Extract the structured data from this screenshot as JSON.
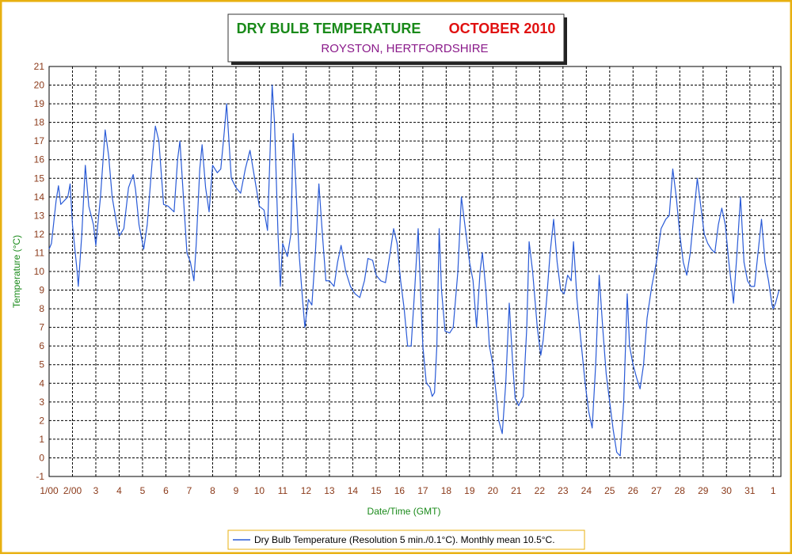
{
  "chart_data": {
    "type": "line",
    "title": "DRY BULB TEMPERATURE",
    "title_period": "OCTOBER 2010",
    "subtitle": "ROYSTON, HERTFORDSHIRE",
    "x_label": "Date/Time (GMT)",
    "y_label": "Temperature (°C)",
    "xlim": [
      0,
      31.33
    ],
    "ylim": [
      -1,
      21
    ],
    "yticks": [
      -1,
      0,
      1,
      2,
      3,
      4,
      5,
      6,
      7,
      8,
      9,
      10,
      11,
      12,
      13,
      14,
      15,
      16,
      17,
      18,
      19,
      20,
      21
    ],
    "xticks": [
      {
        "value": 0,
        "label": "1/00"
      },
      {
        "value": 1,
        "label": "2/00"
      },
      {
        "value": 2,
        "label": "3"
      },
      {
        "value": 3,
        "label": "4"
      },
      {
        "value": 4,
        "label": "5"
      },
      {
        "value": 5,
        "label": "6"
      },
      {
        "value": 6,
        "label": "7"
      },
      {
        "value": 7,
        "label": "8"
      },
      {
        "value": 8,
        "label": "9"
      },
      {
        "value": 9,
        "label": "10"
      },
      {
        "value": 10,
        "label": "11"
      },
      {
        "value": 11,
        "label": "12"
      },
      {
        "value": 12,
        "label": "13"
      },
      {
        "value": 13,
        "label": "14"
      },
      {
        "value": 14,
        "label": "15"
      },
      {
        "value": 15,
        "label": "16"
      },
      {
        "value": 16,
        "label": "17"
      },
      {
        "value": 17,
        "label": "18"
      },
      {
        "value": 18,
        "label": "19"
      },
      {
        "value": 19,
        "label": "20"
      },
      {
        "value": 20,
        "label": "21"
      },
      {
        "value": 21,
        "label": "22"
      },
      {
        "value": 22,
        "label": "23"
      },
      {
        "value": 23,
        "label": "24"
      },
      {
        "value": 24,
        "label": "25"
      },
      {
        "value": 25,
        "label": "26"
      },
      {
        "value": 26,
        "label": "27"
      },
      {
        "value": 27,
        "label": "28"
      },
      {
        "value": 28,
        "label": "29"
      },
      {
        "value": 29,
        "label": "30"
      },
      {
        "value": 30,
        "label": "31"
      },
      {
        "value": 31,
        "label": "1"
      }
    ],
    "grid": true,
    "x": [
      0,
      0.1,
      0.3,
      0.4,
      0.5,
      0.8,
      0.9,
      1.0,
      1.2,
      1.25,
      1.4,
      1.55,
      1.7,
      1.9,
      2.0,
      2.2,
      2.4,
      2.55,
      2.7,
      2.9,
      3.0,
      3.2,
      3.4,
      3.6,
      3.7,
      3.85,
      4.05,
      4.2,
      4.45,
      4.55,
      4.7,
      4.9,
      5.1,
      5.35,
      5.5,
      5.6,
      5.75,
      5.9,
      6.05,
      6.2,
      6.3,
      6.45,
      6.55,
      6.7,
      6.85,
      7.0,
      7.2,
      7.35,
      7.5,
      7.6,
      7.7,
      7.8,
      8.0,
      8.2,
      8.4,
      8.6,
      8.8,
      9.0,
      9.2,
      9.35,
      9.45,
      9.55,
      9.65,
      9.8,
      9.9,
      10.0,
      10.2,
      10.35,
      10.45,
      10.55,
      10.7,
      10.85,
      10.95,
      11.1,
      11.25,
      11.4,
      11.55,
      11.7,
      11.85,
      12.0,
      12.2,
      12.35,
      12.5,
      12.7,
      12.9,
      13.1,
      13.3,
      13.5,
      13.65,
      13.85,
      14.0,
      14.2,
      14.4,
      14.6,
      14.75,
      14.9,
      15.05,
      15.2,
      15.35,
      15.5,
      15.65,
      15.8,
      15.9,
      16.0,
      16.15,
      16.3,
      16.4,
      16.5,
      16.6,
      16.7,
      16.8,
      16.95,
      17.15,
      17.3,
      17.5,
      17.65,
      17.8,
      18.0,
      18.15,
      18.3,
      18.45,
      18.55,
      18.7,
      18.85,
      19.0,
      19.15,
      19.25,
      19.4,
      19.55,
      19.7,
      19.85,
      19.95,
      20.1,
      20.3,
      20.45,
      20.55,
      20.7,
      20.9,
      21.05,
      21.15,
      21.3,
      21.45,
      21.6,
      21.75,
      21.9,
      22.05,
      22.2,
      22.35,
      22.45,
      22.6,
      22.75,
      22.95,
      23.1,
      23.25,
      23.4,
      23.55,
      23.7,
      23.85,
      24.0,
      24.15,
      24.3,
      24.45,
      24.6,
      24.75,
      24.85,
      25.0,
      25.15,
      25.3,
      25.45,
      25.6,
      25.8,
      26.0,
      26.2,
      26.4,
      26.55,
      26.7,
      26.85,
      27.0,
      27.15,
      27.3,
      27.45,
      27.6,
      27.75,
      27.9,
      28.05,
      28.2,
      28.35,
      28.5,
      28.65,
      28.8,
      28.95,
      29.1,
      29.3,
      29.45,
      29.6,
      29.75,
      29.9,
      30.05,
      30.2,
      30.35,
      30.5,
      30.65,
      30.8,
      30.95,
      31.0,
      31.1,
      31.25
    ],
    "series": [
      {
        "name": "Dry Bulb Temperature (Resolution 5 min./0.1°C). Monthly mean 10.5°C.",
        "color": "#2a5bd7",
        "values": [
          11.2,
          11.5,
          13.8,
          14.6,
          13.6,
          14.0,
          14.7,
          12.5,
          10.0,
          9.2,
          12.0,
          15.7,
          13.5,
          12.5,
          11.4,
          14.0,
          17.6,
          16.2,
          14.0,
          12.5,
          11.9,
          12.3,
          14.5,
          15.2,
          14.4,
          12.5,
          11.2,
          12.5,
          16.5,
          17.8,
          17.0,
          13.6,
          13.5,
          13.2,
          16.0,
          17.0,
          14.0,
          11.0,
          10.5,
          9.5,
          11.5,
          15.5,
          16.8,
          14.5,
          13.2,
          15.7,
          15.3,
          15.5,
          17.5,
          19.0,
          17.0,
          15.0,
          14.5,
          14.2,
          15.5,
          16.5,
          15.0,
          13.5,
          13.3,
          12.2,
          16.0,
          20.0,
          18.0,
          12.0,
          9.2,
          11.5,
          10.8,
          12.0,
          17.4,
          15.0,
          11.0,
          8.5,
          7.0,
          8.5,
          8.2,
          11.0,
          14.7,
          12.0,
          9.5,
          9.5,
          9.2,
          10.5,
          11.4,
          10.0,
          9.2,
          8.8,
          8.6,
          9.5,
          10.7,
          10.6,
          9.8,
          9.5,
          9.4,
          11.0,
          12.3,
          11.5,
          9.5,
          8.0,
          6.0,
          6.0,
          9.0,
          12.3,
          9.0,
          6.0,
          4.0,
          3.8,
          3.3,
          3.5,
          6.0,
          12.3,
          9.0,
          6.8,
          6.7,
          7.0,
          10.0,
          14.0,
          12.5,
          10.5,
          9.5,
          7.0,
          10.0,
          11.0,
          9.0,
          6.0,
          5.0,
          3.3,
          2.0,
          1.3,
          4.0,
          8.3,
          5.0,
          3.2,
          2.8,
          3.3,
          7.0,
          11.6,
          10.0,
          7.0,
          5.5,
          6.3,
          8.5,
          11.0,
          12.8,
          10.5,
          9.0,
          8.8,
          9.8,
          9.5,
          11.6,
          8.5,
          6.5,
          4.0,
          2.5,
          1.6,
          5.0,
          9.8,
          7.0,
          4.5,
          3.0,
          1.5,
          0.3,
          0.1,
          3.0,
          8.8,
          6.0,
          5.0,
          4.3,
          3.7,
          5.0,
          7.5,
          9.2,
          10.5,
          12.3,
          12.8,
          13.0,
          15.5,
          14.0,
          12.0,
          10.5,
          9.8,
          11.0,
          13.0,
          15.0,
          13.5,
          12.0,
          11.5,
          11.2,
          11.0,
          12.5,
          13.4,
          12.5,
          10.5,
          8.3,
          11.0,
          14.0,
          10.5,
          9.5,
          9.2,
          9.2,
          11.0,
          12.8,
          10.5,
          9.5,
          8.2,
          8.0,
          8.3,
          9.0
        ]
      }
    ]
  }
}
